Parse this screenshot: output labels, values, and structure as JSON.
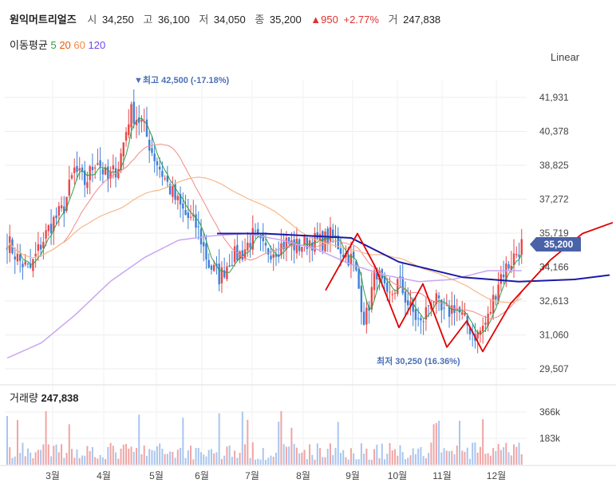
{
  "header": {
    "stock_name": "원익머트리얼즈",
    "open_label": "시",
    "open": "34,250",
    "high_label": "고",
    "high": "36,100",
    "low_label": "저",
    "low": "34,050",
    "close_label": "종",
    "close": "35,200",
    "change": "▲950",
    "change_pct": "+2.77%",
    "volume_label": "거",
    "volume": "247,838"
  },
  "moving_average": {
    "label": "이동평균",
    "periods": [
      "5",
      "20",
      "60",
      "120"
    ],
    "colors": [
      "#2f9e44",
      "#e8590c",
      "#f08c4a",
      "#7048e8"
    ]
  },
  "scale_mode": "Linear",
  "high_marker": "▼최고 42,500 (-17.18%)",
  "low_marker": "최저 30,250 (16.36%)",
  "current_price_tag": "35,200",
  "volume_panel": {
    "title": "거래량",
    "value": "247,838"
  },
  "chart_data": {
    "type": "candlestick",
    "price_axis_ticks": [
      "41,931",
      "40,378",
      "38,825",
      "37,272",
      "35,719",
      "34,166",
      "32,613",
      "31,060",
      "29,507"
    ],
    "price_range": [
      29507,
      41931
    ],
    "volume_axis_ticks": [
      "366k",
      "183k"
    ],
    "x_tick_labels": [
      "3월",
      "4월",
      "5월",
      "6월",
      "7월",
      "8월",
      "9월",
      "10월",
      "11월",
      "12월"
    ],
    "approx_price_path": [
      35400,
      34500,
      34000,
      35200,
      36200,
      36800,
      38600,
      38000,
      39200,
      38100,
      38900,
      41300,
      40800,
      39400,
      38300,
      37300,
      36500,
      36000,
      34300,
      33700,
      34600,
      34800,
      35600,
      34900,
      35000,
      35300,
      35100,
      35400,
      35300,
      35600,
      34900,
      34400,
      31600,
      34100,
      32600,
      33500,
      32300,
      31500,
      32900,
      31900,
      32400,
      31600,
      31000,
      31800,
      33700,
      34400,
      35200
    ],
    "ma120_path": [
      30000,
      30700,
      32000,
      33500,
      34600,
      35400,
      35600,
      35700,
      35400,
      35000,
      34300,
      33800,
      33500,
      33600,
      34000,
      34000
    ],
    "annotations": {
      "blue_line_values": [
        35700,
        35700,
        35500,
        34400,
        33700,
        33500,
        33600,
        33800
      ],
      "red_curve_values": [
        33100,
        35700,
        34200,
        31400,
        33400,
        30500,
        31700,
        30300,
        32500,
        34500,
        35700,
        36200
      ]
    }
  }
}
